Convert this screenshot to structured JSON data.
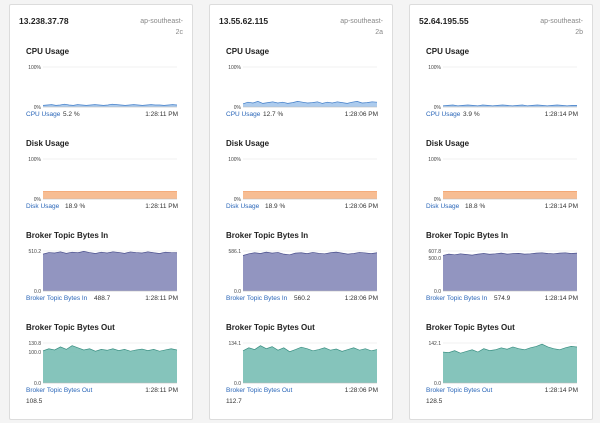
{
  "theme": {
    "cpu_fill": "#a8c8ec",
    "cpu_stroke": "#3f7cc8",
    "disk_fill": "#f7b98d",
    "disk_stroke": "#f0965a",
    "in_fill": "#8c8fbd",
    "in_stroke": "#4a4f8c",
    "out_fill": "#7ec1b7",
    "out_stroke": "#3a8f82"
  },
  "metric_titles": {
    "cpu": "CPU Usage",
    "disk": "Disk Usage",
    "in": "Broker Topic Bytes In",
    "out": "Broker Topic Bytes Out"
  },
  "servers": [
    {
      "ip": "13.238.37.78",
      "region": "ap-southeast-2c",
      "cpu": {
        "label": "CPU Usage",
        "value": "5.2 %",
        "time": "1:28:11 PM",
        "ticks": [
          "100%",
          "0%"
        ]
      },
      "disk": {
        "label": "Disk Usage",
        "value": "18.9 %",
        "time": "1:28:11 PM",
        "ticks": [
          "100%",
          "0%"
        ]
      },
      "in": {
        "label": "Broker Topic Bytes In",
        "value": "488.7",
        "time": "1:28:11 PM",
        "ticks": [
          "510.2",
          "0.0"
        ]
      },
      "out": {
        "label": "Broker Topic Bytes Out",
        "value": "108.5",
        "time": "1:28:11 PM",
        "ticks": [
          "130.8",
          "100.0",
          "0.0"
        ]
      }
    },
    {
      "ip": "13.55.62.115",
      "region": "ap-southeast-2a",
      "cpu": {
        "label": "CPU Usage",
        "value": "12.7 %",
        "time": "1:28:06 PM",
        "ticks": [
          "100%",
          "0%"
        ]
      },
      "disk": {
        "label": "Disk Usage",
        "value": "18.9 %",
        "time": "1:28:06 PM",
        "ticks": [
          "100%",
          "0%"
        ]
      },
      "in": {
        "label": "Broker Topic Bytes In",
        "value": "560.2",
        "time": "1:28:06 PM",
        "ticks": [
          "586.1",
          "0.0"
        ]
      },
      "out": {
        "label": "Broker Topic Bytes Out",
        "value": "112.7",
        "time": "1:28:06 PM",
        "ticks": [
          "134.1",
          "0.0"
        ]
      }
    },
    {
      "ip": "52.64.195.55",
      "region": "ap-southeast-2b",
      "cpu": {
        "label": "CPU Usage",
        "value": "3.9 %",
        "time": "1:28:14 PM",
        "ticks": [
          "100%",
          "0%"
        ]
      },
      "disk": {
        "label": "Disk Usage",
        "value": "18.8 %",
        "time": "1:28:14 PM",
        "ticks": [
          "100%",
          "0%"
        ]
      },
      "in": {
        "label": "Broker Topic Bytes In",
        "value": "574.9",
        "time": "1:28:14 PM",
        "ticks": [
          "607.8",
          "500.0",
          "0.0"
        ]
      },
      "out": {
        "label": "Broker Topic Bytes Out",
        "value": "128.5",
        "time": "1:28:14 PM",
        "ticks": [
          "142.1",
          "0.0"
        ]
      }
    }
  ],
  "chart_data": [
    {
      "type": "area",
      "server": "13.238.37.78",
      "metric": "CPU Usage",
      "ylim": [
        0,
        100
      ],
      "values": [
        4,
        5,
        6,
        4,
        5,
        7,
        5,
        4,
        6,
        5,
        4,
        5,
        6,
        5,
        4,
        5,
        7,
        6,
        5,
        4,
        5,
        6,
        5,
        4,
        5,
        6,
        5,
        5,
        4,
        5,
        6,
        5
      ]
    },
    {
      "type": "area",
      "server": "13.238.37.78",
      "metric": "Disk Usage",
      "ylim": [
        0,
        100
      ],
      "values": [
        18.9,
        18.9,
        18.9,
        18.9,
        18.9,
        18.9,
        18.9,
        18.9,
        18.9,
        18.9,
        18.9,
        18.9
      ]
    },
    {
      "type": "area",
      "server": "13.238.37.78",
      "metric": "Broker Topic Bytes In",
      "ylim": [
        0,
        510.2
      ],
      "values": [
        470,
        490,
        485,
        500,
        480,
        495,
        488,
        505,
        490,
        478,
        495,
        485,
        500,
        492,
        480,
        498,
        490,
        485,
        500,
        488,
        478,
        495,
        490,
        488
      ]
    },
    {
      "type": "area",
      "server": "13.238.37.78",
      "metric": "Broker Topic Bytes Out",
      "ylim": [
        0,
        130.8
      ],
      "values": [
        105,
        112,
        108,
        118,
        110,
        122,
        115,
        108,
        112,
        104,
        110,
        107,
        112,
        106,
        110,
        104,
        108,
        111,
        106,
        110,
        104,
        108,
        112,
        108
      ]
    },
    {
      "type": "area",
      "server": "13.55.62.115",
      "metric": "CPU Usage",
      "ylim": [
        0,
        100
      ],
      "values": [
        8,
        12,
        10,
        14,
        9,
        11,
        13,
        10,
        12,
        9,
        11,
        14,
        12,
        10,
        11,
        13,
        9,
        12,
        10,
        13,
        11,
        9,
        12,
        14,
        10,
        11,
        13,
        12
      ]
    },
    {
      "type": "area",
      "server": "13.55.62.115",
      "metric": "Disk Usage",
      "ylim": [
        0,
        100
      ],
      "values": [
        18.9,
        18.9,
        18.9,
        18.9,
        18.9,
        18.9,
        18.9,
        18.9,
        18.9,
        18.9,
        18.9,
        18.9
      ]
    },
    {
      "type": "area",
      "server": "13.55.62.115",
      "metric": "Broker Topic Bytes In",
      "ylim": [
        0,
        586.1
      ],
      "values": [
        520,
        545,
        560,
        550,
        570,
        555,
        565,
        540,
        530,
        555,
        560,
        548,
        565,
        552,
        545,
        560,
        570,
        555,
        540,
        550,
        565,
        558,
        548,
        560
      ]
    },
    {
      "type": "area",
      "server": "13.55.62.115",
      "metric": "Broker Topic Bytes Out",
      "ylim": [
        0,
        134.1
      ],
      "values": [
        108,
        118,
        112,
        125,
        115,
        122,
        110,
        118,
        105,
        112,
        120,
        115,
        108,
        112,
        118,
        110,
        114,
        106,
        112,
        118,
        110,
        115,
        108,
        112
      ]
    },
    {
      "type": "area",
      "server": "52.64.195.55",
      "metric": "CPU Usage",
      "ylim": [
        0,
        100
      ],
      "values": [
        3,
        4,
        5,
        3,
        4,
        5,
        4,
        3,
        5,
        4,
        3,
        4,
        5,
        4,
        3,
        4,
        5,
        3,
        4,
        5,
        4,
        3,
        4,
        5,
        4,
        3,
        4,
        4
      ]
    },
    {
      "type": "area",
      "server": "52.64.195.55",
      "metric": "Disk Usage",
      "ylim": [
        0,
        100
      ],
      "values": [
        18.8,
        18.8,
        18.8,
        18.8,
        18.8,
        18.8,
        18.8,
        18.8,
        18.8,
        18.8,
        18.8,
        18.8
      ]
    },
    {
      "type": "area",
      "server": "52.64.195.55",
      "metric": "Broker Topic Bytes In",
      "ylim": [
        0,
        607.8
      ],
      "values": [
        540,
        560,
        550,
        565,
        555,
        545,
        560,
        570,
        558,
        565,
        575,
        560,
        568,
        572,
        560,
        565,
        575,
        580,
        570,
        565,
        575,
        580,
        570,
        575
      ]
    },
    {
      "type": "area",
      "server": "52.64.195.55",
      "metric": "Broker Topic Bytes Out",
      "ylim": [
        0,
        142.1
      ],
      "values": [
        110,
        108,
        115,
        106,
        112,
        118,
        110,
        122,
        115,
        118,
        125,
        120,
        128,
        122,
        118,
        125,
        130,
        138,
        128,
        122,
        118,
        125,
        130,
        128
      ]
    }
  ]
}
